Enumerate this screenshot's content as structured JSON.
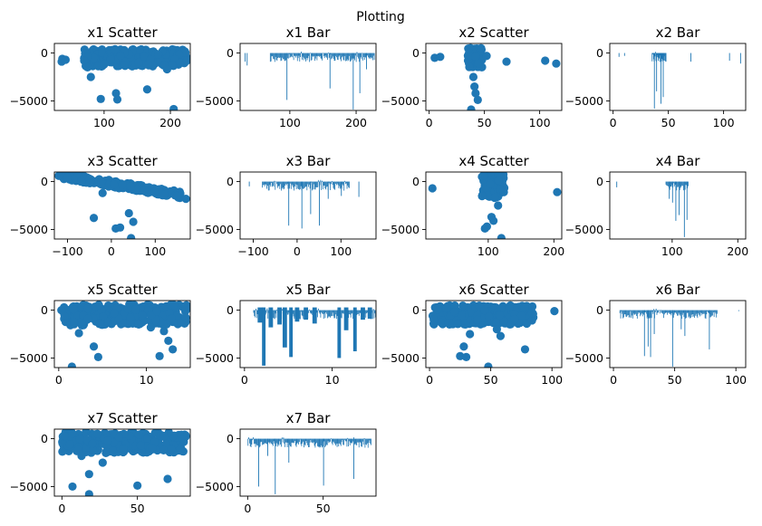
{
  "figure_title": "Plotting",
  "chart_data": [
    {
      "type": "scatter",
      "title": "x1 Scatter",
      "xlim": [
        25,
        230
      ],
      "ylim": [
        -6000,
        1000
      ],
      "xticks": [
        100,
        200
      ],
      "yticks": [
        0,
        -5000
      ],
      "color": "#1f77b4",
      "points": [
        [
          36,
          -900
        ],
        [
          37,
          -600
        ],
        [
          42,
          -700
        ],
        [
          70,
          -800
        ],
        [
          75,
          -1500
        ],
        [
          80,
          -2500
        ],
        [
          95,
          -4800
        ],
        [
          100,
          -1200
        ],
        [
          110,
          -700
        ],
        [
          118,
          -4200
        ],
        [
          120,
          -4850
        ],
        [
          165,
          -3800
        ],
        [
          195,
          -1700
        ],
        [
          205,
          -5850
        ],
        [
          215,
          -1000
        ],
        [
          225,
          -800
        ]
      ],
      "band": {
        "xmin": 70,
        "xmax": 228,
        "ymin": -1400,
        "ymax": 400
      }
    },
    {
      "type": "bar",
      "title": "x1 Bar",
      "xlim": [
        25,
        230
      ],
      "ylim": [
        -6000,
        1000
      ],
      "xticks": [
        100,
        200
      ],
      "yticks": [
        0,
        -5000
      ],
      "color": "#1f77b4",
      "base_x": [
        70,
        228
      ],
      "bars": [
        [
          32,
          -900
        ],
        [
          35,
          -1300
        ],
        [
          95,
          -4900
        ],
        [
          160,
          -3700
        ],
        [
          195,
          -5900
        ],
        [
          205,
          -4200
        ],
        [
          215,
          -1700
        ]
      ]
    },
    {
      "type": "scatter",
      "title": "x2 Scatter",
      "xlim": [
        -3,
        120
      ],
      "ylim": [
        -6000,
        1000
      ],
      "xticks": [
        0,
        50,
        100
      ],
      "yticks": [
        0,
        -5000
      ],
      "color": "#1f77b4",
      "points": [
        [
          5,
          -500
        ],
        [
          10,
          -400
        ],
        [
          52,
          -300
        ],
        [
          40,
          -2500
        ],
        [
          41,
          -3500
        ],
        [
          42,
          -4200
        ],
        [
          44,
          -4900
        ],
        [
          38,
          -5900
        ],
        [
          70,
          -900
        ],
        [
          105,
          -800
        ],
        [
          115,
          -1100
        ]
      ],
      "band": {
        "xmin": 35,
        "xmax": 48,
        "ymin": -1500,
        "ymax": 600
      }
    },
    {
      "type": "bar",
      "title": "x2 Bar",
      "xlim": [
        -3,
        120
      ],
      "ylim": [
        -6000,
        1000
      ],
      "xticks": [
        0,
        50,
        100
      ],
      "yticks": [
        0,
        -5000
      ],
      "color": "#1f77b4",
      "base_x": [
        35,
        48
      ],
      "bars": [
        [
          5,
          -400
        ],
        [
          10,
          -300
        ],
        [
          37,
          -5800
        ],
        [
          39,
          -4000
        ],
        [
          43,
          -5300
        ],
        [
          45,
          -4600
        ],
        [
          70,
          -900
        ],
        [
          105,
          -800
        ],
        [
          115,
          -1100
        ]
      ]
    },
    {
      "type": "scatter",
      "title": "x3 Scatter",
      "xlim": [
        -130,
        180
      ],
      "ylim": [
        -6000,
        1000
      ],
      "xticks": [
        -100,
        0,
        100
      ],
      "yticks": [
        0,
        -5000
      ],
      "color": "#1f77b4",
      "points": [
        [
          -120,
          600
        ],
        [
          -100,
          400
        ],
        [
          -40,
          -3800
        ],
        [
          -20,
          -1200
        ],
        [
          10,
          -4900
        ],
        [
          20,
          -4800
        ],
        [
          40,
          -3300
        ],
        [
          50,
          -4200
        ],
        [
          45,
          -5900
        ],
        [
          150,
          -1500
        ],
        [
          170,
          -1800
        ]
      ],
      "band": {
        "xmin": -110,
        "xmax": 160,
        "ymin": -1800,
        "ymax": 600
      }
    },
    {
      "type": "bar",
      "title": "x3 Bar",
      "xlim": [
        -130,
        180
      ],
      "ylim": [
        -6000,
        1000
      ],
      "xticks": [
        -100,
        0,
        100
      ],
      "yticks": [
        0,
        -5000
      ],
      "color": "#1f77b4",
      "base_x": [
        -80,
        120
      ],
      "bars": [
        [
          -110,
          -500
        ],
        [
          -20,
          -4600
        ],
        [
          10,
          -4900
        ],
        [
          30,
          -3400
        ],
        [
          50,
          -4600
        ],
        [
          70,
          -1800
        ],
        [
          100,
          -1500
        ],
        [
          140,
          -1600
        ]
      ]
    },
    {
      "type": "scatter",
      "title": "x4 Scatter",
      "xlim": [
        5,
        212
      ],
      "ylim": [
        -6000,
        1000
      ],
      "xticks": [
        100,
        200
      ],
      "yticks": [
        0,
        -5000
      ],
      "color": "#1f77b4",
      "points": [
        [
          15,
          -700
        ],
        [
          95,
          -4900
        ],
        [
          98,
          -4700
        ],
        [
          105,
          -3700
        ],
        [
          108,
          -4100
        ],
        [
          115,
          -2500
        ],
        [
          120,
          -5900
        ],
        [
          205,
          -1100
        ]
      ],
      "band": {
        "xmin": 90,
        "xmax": 125,
        "ymin": -1700,
        "ymax": 800
      }
    },
    {
      "type": "bar",
      "title": "x4 Bar",
      "xlim": [
        5,
        212
      ],
      "ylim": [
        -6000,
        1000
      ],
      "xticks": [
        100,
        200
      ],
      "yticks": [
        0,
        -5000
      ],
      "color": "#1f77b4",
      "base_x": [
        90,
        125
      ],
      "bars": [
        [
          15,
          -600
        ],
        [
          95,
          -1800
        ],
        [
          100,
          -2200
        ],
        [
          105,
          -4100
        ],
        [
          110,
          -3500
        ],
        [
          118,
          -5800
        ],
        [
          122,
          -4000
        ]
      ]
    },
    {
      "type": "scatter",
      "title": "x5 Scatter",
      "xlim": [
        -0.5,
        15
      ],
      "ylim": [
        -6000,
        1000
      ],
      "xticks": [
        0,
        10
      ],
      "yticks": [
        0,
        -5000
      ],
      "color": "#1f77b4",
      "points": [
        [
          0.3,
          0
        ],
        [
          1.5,
          -5900
        ],
        [
          2.3,
          -2400
        ],
        [
          4,
          -3800
        ],
        [
          4.5,
          -4900
        ],
        [
          10.5,
          -1800
        ],
        [
          11.5,
          -4800
        ],
        [
          12,
          -2200
        ],
        [
          12.5,
          -3200
        ],
        [
          13,
          -4100
        ],
        [
          14.5,
          -800
        ]
      ],
      "band": {
        "xmin": 0.5,
        "xmax": 14.8,
        "ymin": -1600,
        "ymax": 600
      }
    },
    {
      "type": "bar",
      "title": "x5 Bar",
      "xlim": [
        -0.5,
        15
      ],
      "ylim": [
        -6000,
        1000
      ],
      "xticks": [
        0,
        10
      ],
      "yticks": [
        0,
        -5000
      ],
      "color": "#1f77b4",
      "base_x": [
        1,
        15
      ],
      "wide_bars": [
        [
          1.8,
          -1300,
          0.6
        ],
        [
          2.2,
          -5800,
          0.4
        ],
        [
          3,
          -1800,
          0.5
        ],
        [
          4,
          -1500,
          0.5
        ],
        [
          4.6,
          -3900,
          0.5
        ],
        [
          5.3,
          -4900,
          0.4
        ],
        [
          6,
          -1200,
          0.5
        ],
        [
          7,
          -1000,
          0.5
        ],
        [
          8,
          -1400,
          0.5
        ],
        [
          10.8,
          -5000,
          0.4
        ],
        [
          11.6,
          -2100,
          0.5
        ],
        [
          12.6,
          -4300,
          0.4
        ],
        [
          13.5,
          -1000,
          0.5
        ],
        [
          14.3,
          -900,
          0.5
        ]
      ]
    },
    {
      "type": "scatter",
      "title": "x6 Scatter",
      "xlim": [
        -3,
        108
      ],
      "ylim": [
        -6000,
        1000
      ],
      "xticks": [
        0,
        50,
        100
      ],
      "yticks": [
        0,
        -5000
      ],
      "color": "#1f77b4",
      "points": [
        [
          25,
          -4800
        ],
        [
          28,
          -3800
        ],
        [
          30,
          -4900
        ],
        [
          33,
          -2500
        ],
        [
          48,
          -5900
        ],
        [
          55,
          -2000
        ],
        [
          58,
          -2700
        ],
        [
          78,
          -4100
        ],
        [
          102,
          -100
        ]
      ],
      "band": {
        "xmin": 2,
        "xmax": 85,
        "ymin": -1500,
        "ymax": 500
      }
    },
    {
      "type": "bar",
      "title": "x6 Bar",
      "xlim": [
        -3,
        108
      ],
      "ylim": [
        -6000,
        1000
      ],
      "xticks": [
        0,
        50,
        100
      ],
      "yticks": [
        0,
        -5000
      ],
      "color": "#1f77b4",
      "base_x": [
        5,
        85
      ],
      "bars": [
        [
          25,
          -4800
        ],
        [
          28,
          -3800
        ],
        [
          30,
          -4900
        ],
        [
          33,
          -2500
        ],
        [
          48,
          -5900
        ],
        [
          55,
          -2000
        ],
        [
          58,
          -2700
        ],
        [
          78,
          -4100
        ],
        [
          102,
          -100
        ]
      ]
    },
    {
      "type": "scatter",
      "title": "x7 Scatter",
      "xlim": [
        -5,
        85
      ],
      "ylim": [
        -6000,
        1000
      ],
      "xticks": [
        0,
        50
      ],
      "yticks": [
        0,
        -5000
      ],
      "color": "#1f77b4",
      "points": [
        [
          7,
          -5000
        ],
        [
          18,
          -5800
        ],
        [
          18,
          -3700
        ],
        [
          27,
          -2500
        ],
        [
          13,
          -1800
        ],
        [
          50,
          -4900
        ],
        [
          70,
          -4200
        ],
        [
          80,
          0
        ]
      ],
      "band": {
        "xmin": 0,
        "xmax": 82,
        "ymin": -1500,
        "ymax": 700
      }
    },
    {
      "type": "bar",
      "title": "x7 Bar",
      "xlim": [
        -5,
        85
      ],
      "ylim": [
        -6000,
        1000
      ],
      "xticks": [
        0,
        50
      ],
      "yticks": [
        0,
        -5000
      ],
      "color": "#1f77b4",
      "base_x": [
        0,
        82
      ],
      "bars": [
        [
          7,
          -5000
        ],
        [
          18,
          -5800
        ],
        [
          13,
          -1800
        ],
        [
          27,
          -2500
        ],
        [
          50,
          -4900
        ],
        [
          70,
          -4200
        ]
      ]
    }
  ]
}
